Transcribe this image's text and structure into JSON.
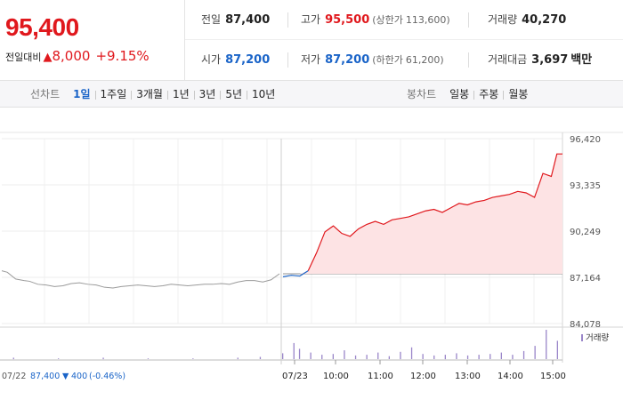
{
  "quote": {
    "price": "95,400",
    "change_label": "전일대비",
    "change_arrow": "▲",
    "change_value": "8,000",
    "change_rate": "+9.15%",
    "prev_close": {
      "label": "전일",
      "value": "87,400"
    },
    "open": {
      "label": "시가",
      "value": "87,200"
    },
    "high": {
      "label": "고가",
      "value": "95,500",
      "limit_label": "(상한가",
      "limit_value": "113,600)"
    },
    "low": {
      "label": "저가",
      "value": "87,200",
      "limit_label": "(하한가",
      "limit_value": "61,200)"
    },
    "volume": {
      "label": "거래량",
      "value": "40,270"
    },
    "amount": {
      "label": "거래대금",
      "value": "3,697",
      "unit": "백만"
    }
  },
  "tabs": {
    "line_title": "선차트",
    "line_periods": [
      "1일",
      "1주일",
      "3개월",
      "1년",
      "3년",
      "5년",
      "10년"
    ],
    "active_period": "1일",
    "candle_title": "봉차트",
    "candle_periods": [
      "일봉",
      "주봉",
      "월봉"
    ]
  },
  "colors": {
    "up": "#e0181d",
    "down": "#1a64c8",
    "prev_line": "#9a9a9a",
    "area_fill": "#fde3e4",
    "volume_bar": "#9a86c9"
  },
  "chart_data": {
    "type": "line",
    "y_ticks": [
      "96,420",
      "93,335",
      "90,249",
      "87,164",
      "84,078"
    ],
    "ylim": [
      84078,
      96420
    ],
    "reference_price": 87400,
    "x_labels": [
      "07/22",
      "07/23",
      "10:00",
      "11:00",
      "12:00",
      "13:00",
      "14:00",
      "15:00"
    ],
    "prev_day_label": "07/22",
    "prev_day_close": "87,400",
    "prev_day_change_arrow": "▼",
    "prev_day_change": "400",
    "prev_day_rate": "(-0.46%)",
    "volume_legend": "거래량",
    "series": [
      {
        "session": "07/22",
        "x": [
          0,
          0.02,
          0.05,
          0.08,
          0.1,
          0.13,
          0.16,
          0.19,
          0.22,
          0.25,
          0.28,
          0.31,
          0.34,
          0.37,
          0.4,
          0.43,
          0.46,
          0.49,
          0.52,
          0.55,
          0.58,
          0.61,
          0.64,
          0.67,
          0.7,
          0.73,
          0.76,
          0.79,
          0.82,
          0.85,
          0.88,
          0.91,
          0.94,
          0.97,
          1
        ],
        "y": [
          87600,
          87500,
          87050,
          86950,
          86900,
          86700,
          86650,
          86550,
          86600,
          86750,
          86800,
          86700,
          86650,
          86500,
          86450,
          86550,
          86600,
          86650,
          86600,
          86550,
          86600,
          86700,
          86650,
          86600,
          86650,
          86700,
          86700,
          86750,
          86700,
          86850,
          86950,
          86950,
          86850,
          87000,
          87400
        ]
      },
      {
        "session": "07/23",
        "x": [
          0,
          0.03,
          0.06,
          0.09,
          0.12,
          0.15,
          0.18,
          0.21,
          0.24,
          0.27,
          0.3,
          0.33,
          0.36,
          0.39,
          0.42,
          0.45,
          0.48,
          0.51,
          0.54,
          0.57,
          0.6,
          0.63,
          0.66,
          0.69,
          0.72,
          0.75,
          0.78,
          0.81,
          0.84,
          0.87,
          0.9,
          0.93,
          0.96,
          0.98,
          1
        ],
        "y": [
          87200,
          87300,
          87250,
          87600,
          88800,
          90200,
          90600,
          90100,
          89900,
          90400,
          90700,
          90900,
          90700,
          91000,
          91100,
          91200,
          91400,
          91600,
          91700,
          91500,
          91800,
          92100,
          92000,
          92200,
          92300,
          92500,
          92600,
          92700,
          92900,
          92800,
          92500,
          94100,
          93900,
          95400,
          95400
        ]
      }
    ],
    "volume": {
      "x": [
        0.02,
        0.1,
        0.18,
        0.26,
        0.34,
        0.42,
        0.46,
        0.5,
        0.52,
        0.53,
        0.55,
        0.57,
        0.59,
        0.61,
        0.63,
        0.65,
        0.67,
        0.69,
        0.71,
        0.73,
        0.75,
        0.77,
        0.79,
        0.81,
        0.83,
        0.85,
        0.87,
        0.89,
        0.91,
        0.93,
        0.95,
        0.97,
        0.99
      ],
      "values": [
        2,
        1,
        2,
        1,
        1,
        2,
        3,
        8,
        22,
        14,
        9,
        6,
        7,
        12,
        5,
        6,
        9,
        4,
        10,
        16,
        7,
        5,
        6,
        8,
        5,
        6,
        7,
        9,
        6,
        11,
        18,
        40,
        25
      ]
    }
  }
}
